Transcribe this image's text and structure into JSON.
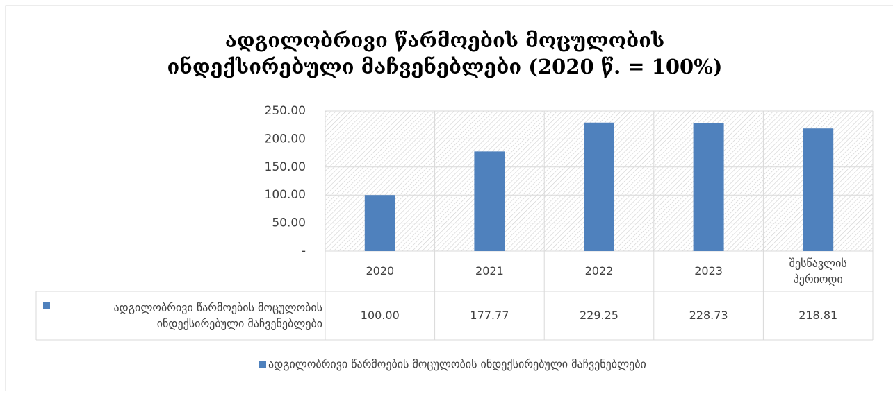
{
  "chart_data": {
    "type": "bar",
    "title": "ადგილობრივი წარმოების მოცულობის ინდექსირებული მაჩვენებლები  (2020 წ. = 100%)",
    "categories": [
      "2020",
      "2021",
      "2022",
      "2023",
      "შესწავლის პერიოდი"
    ],
    "series": [
      {
        "name": "ადგილობრივი წარმოების მოცულობის ინდექსირებული მაჩვენებლები",
        "color": "#4f81bd",
        "values": [
          100.0,
          177.77,
          229.25,
          228.73,
          218.81
        ],
        "value_labels": [
          "100.00",
          "177.77",
          "229.25",
          "228.73",
          "218.81"
        ]
      }
    ],
    "ylim": [
      0,
      250
    ],
    "yticks": [
      {
        "value": 0,
        "label": "-"
      },
      {
        "value": 50,
        "label": "50.00"
      },
      {
        "value": 100,
        "label": "100.00"
      },
      {
        "value": 150,
        "label": "150.00"
      },
      {
        "value": 200,
        "label": "200.00"
      },
      {
        "value": 250,
        "label": "250.00"
      }
    ],
    "grid": true,
    "legend": "bottom",
    "data_table": true
  }
}
